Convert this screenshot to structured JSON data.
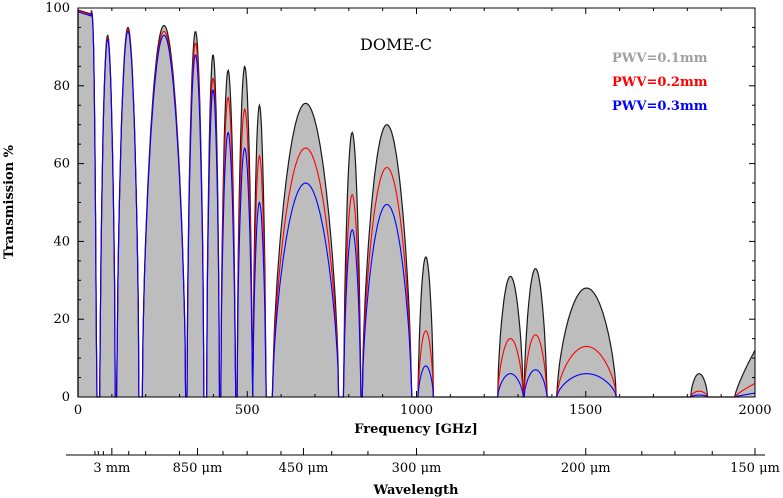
{
  "chart_data": {
    "type": "area",
    "title": "DOME-C",
    "xlabel": "Frequency [GHz]",
    "ylabel": "Transmission %",
    "xlim": [
      0,
      2000
    ],
    "ylim": [
      0,
      100
    ],
    "x_ticks": [
      "0",
      "500",
      "1000",
      "1500",
      "2000"
    ],
    "y_ticks": [
      "0",
      "20",
      "40",
      "60",
      "80",
      "100"
    ],
    "secondary_axis": {
      "label": "Wavelength",
      "ticks": [
        {
          "label": "3 mm",
          "freq_ghz": 100
        },
        {
          "label": "850 μm",
          "freq_ghz": 353
        },
        {
          "label": "450 μm",
          "freq_ghz": 666
        },
        {
          "label": "300 μm",
          "freq_ghz": 1000
        },
        {
          "label": "200 μm",
          "freq_ghz": 1500
        },
        {
          "label": "150 μm",
          "freq_ghz": 2000
        }
      ]
    },
    "legend_position": "top-right",
    "series": [
      {
        "name": "PWV=0.1mm",
        "color": "#a0a0a0",
        "windows": [
          {
            "x": [
              0,
              55
            ],
            "peak": 99.5,
            "shape": "wall"
          },
          {
            "x": [
              65,
              110
            ],
            "peak": 93
          },
          {
            "x": [
              115,
              180
            ],
            "peak": 95
          },
          {
            "x": [
              190,
              318
            ],
            "peak": 95.5
          },
          {
            "x": [
              322,
              372
            ],
            "peak": 94
          },
          {
            "x": [
              380,
              418
            ],
            "peak": 88
          },
          {
            "x": [
              422,
              465
            ],
            "peak": 84
          },
          {
            "x": [
              470,
              515
            ],
            "peak": 85
          },
          {
            "x": [
              517,
              555
            ],
            "peak": 75
          },
          {
            "x": [
              575,
              770
            ],
            "peak": 75.5
          },
          {
            "x": [
              785,
              835
            ],
            "peak": 68
          },
          {
            "x": [
              840,
              985
            ],
            "peak": 70
          },
          {
            "x": [
              1005,
              1050
            ],
            "peak": 36
          },
          {
            "x": [
              1240,
              1315
            ],
            "peak": 31
          },
          {
            "x": [
              1318,
              1385
            ],
            "peak": 33
          },
          {
            "x": [
              1415,
              1590
            ],
            "peak": 28
          },
          {
            "x": [
              1810,
              1860
            ],
            "peak": 6
          },
          {
            "x": [
              1940,
              2000
            ],
            "peak": 12,
            "shape": "rise"
          }
        ]
      },
      {
        "name": "PWV=0.2mm",
        "color": "#ff0000",
        "windows": [
          {
            "x": [
              0,
              55
            ],
            "peak": 99.3,
            "shape": "wall"
          },
          {
            "x": [
              65,
              110
            ],
            "peak": 92.5
          },
          {
            "x": [
              115,
              180
            ],
            "peak": 94.5
          },
          {
            "x": [
              190,
              318
            ],
            "peak": 94
          },
          {
            "x": [
              322,
              372
            ],
            "peak": 91
          },
          {
            "x": [
              380,
              418
            ],
            "peak": 82
          },
          {
            "x": [
              422,
              465
            ],
            "peak": 77
          },
          {
            "x": [
              470,
              515
            ],
            "peak": 74
          },
          {
            "x": [
              517,
              555
            ],
            "peak": 62
          },
          {
            "x": [
              575,
              770
            ],
            "peak": 64
          },
          {
            "x": [
              785,
              835
            ],
            "peak": 52
          },
          {
            "x": [
              840,
              985
            ],
            "peak": 59
          },
          {
            "x": [
              1005,
              1050
            ],
            "peak": 17
          },
          {
            "x": [
              1240,
              1315
            ],
            "peak": 15
          },
          {
            "x": [
              1318,
              1385
            ],
            "peak": 16
          },
          {
            "x": [
              1415,
              1590
            ],
            "peak": 13
          },
          {
            "x": [
              1810,
              1860
            ],
            "peak": 1.5
          },
          {
            "x": [
              1940,
              2000
            ],
            "peak": 3.5,
            "shape": "rise"
          }
        ]
      },
      {
        "name": "PWV=0.3mm",
        "color": "#0000ff",
        "windows": [
          {
            "x": [
              0,
              55
            ],
            "peak": 99,
            "shape": "wall"
          },
          {
            "x": [
              65,
              110
            ],
            "peak": 92
          },
          {
            "x": [
              115,
              180
            ],
            "peak": 94
          },
          {
            "x": [
              190,
              318
            ],
            "peak": 93
          },
          {
            "x": [
              322,
              372
            ],
            "peak": 88
          },
          {
            "x": [
              380,
              418
            ],
            "peak": 79
          },
          {
            "x": [
              422,
              465
            ],
            "peak": 68
          },
          {
            "x": [
              470,
              515
            ],
            "peak": 64
          },
          {
            "x": [
              517,
              555
            ],
            "peak": 50
          },
          {
            "x": [
              575,
              770
            ],
            "peak": 55
          },
          {
            "x": [
              785,
              835
            ],
            "peak": 43
          },
          {
            "x": [
              840,
              985
            ],
            "peak": 49.5
          },
          {
            "x": [
              1005,
              1050
            ],
            "peak": 8
          },
          {
            "x": [
              1240,
              1315
            ],
            "peak": 6
          },
          {
            "x": [
              1318,
              1385
            ],
            "peak": 7
          },
          {
            "x": [
              1415,
              1590
            ],
            "peak": 6
          },
          {
            "x": [
              1810,
              1860
            ],
            "peak": 0.5
          },
          {
            "x": [
              1940,
              2000
            ],
            "peak": 1,
            "shape": "rise"
          }
        ]
      }
    ]
  }
}
